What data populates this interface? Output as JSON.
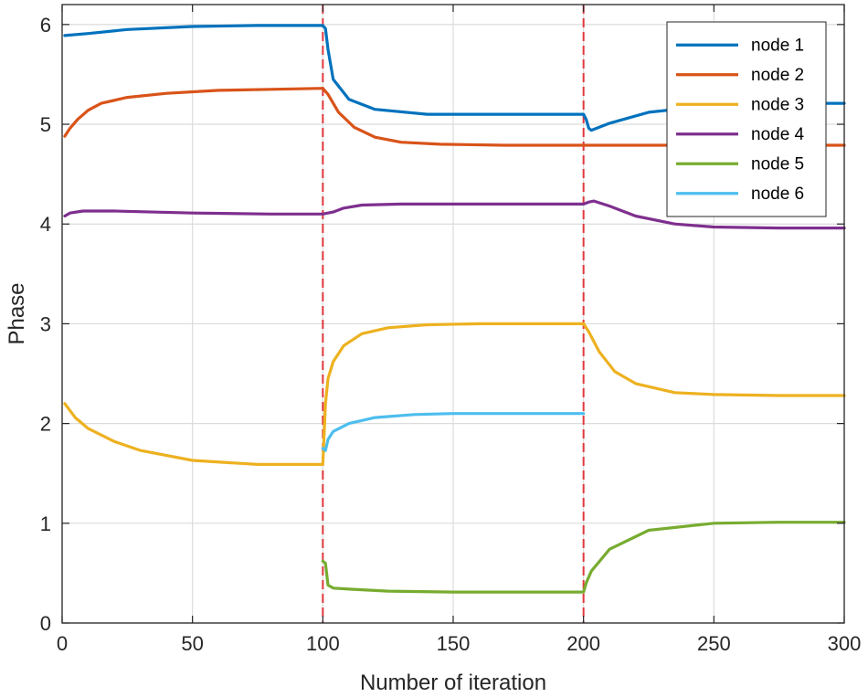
{
  "chart_data": {
    "type": "line",
    "title": "",
    "xlabel": "Number of iteration",
    "ylabel": "Phase",
    "xlim": [
      0,
      300
    ],
    "ylim": [
      0,
      6.2
    ],
    "xticks": [
      0,
      50,
      100,
      150,
      200,
      250,
      300
    ],
    "yticks": [
      0,
      1,
      2,
      3,
      4,
      5,
      6
    ],
    "grid": true,
    "legend_position": "top-right",
    "event_markers": [
      100,
      200
    ],
    "series": [
      {
        "name": "node 1",
        "color": "#0072bd",
        "x": [
          1,
          10,
          25,
          50,
          75,
          100,
          101,
          102,
          104,
          110,
          120,
          140,
          170,
          200,
          201,
          202,
          203,
          210,
          225,
          250,
          275,
          300
        ],
        "y": [
          5.89,
          5.91,
          5.95,
          5.98,
          5.99,
          5.99,
          5.96,
          5.75,
          5.45,
          5.25,
          5.15,
          5.1,
          5.1,
          5.1,
          5.05,
          4.96,
          4.94,
          5.01,
          5.12,
          5.19,
          5.21,
          5.21
        ]
      },
      {
        "name": "node 2",
        "color": "#d95319",
        "x": [
          1,
          3,
          6,
          10,
          15,
          25,
          40,
          60,
          80,
          100,
          102,
          106,
          112,
          120,
          130,
          145,
          170,
          200,
          225,
          250,
          300
        ],
        "y": [
          4.88,
          4.96,
          5.05,
          5.14,
          5.21,
          5.27,
          5.31,
          5.34,
          5.35,
          5.36,
          5.3,
          5.12,
          4.97,
          4.87,
          4.82,
          4.8,
          4.79,
          4.79,
          4.79,
          4.79,
          4.79
        ]
      },
      {
        "name": "node 3",
        "color": "#edb120",
        "x": [
          1,
          5,
          10,
          20,
          30,
          50,
          75,
          100,
          101,
          102,
          104,
          108,
          115,
          125,
          140,
          160,
          200,
          202,
          206,
          212,
          220,
          235,
          250,
          275,
          300
        ],
        "y": [
          2.2,
          2.06,
          1.95,
          1.82,
          1.73,
          1.63,
          1.59,
          1.59,
          2.2,
          2.45,
          2.62,
          2.78,
          2.9,
          2.96,
          2.99,
          3.0,
          3.0,
          2.92,
          2.72,
          2.52,
          2.4,
          2.31,
          2.29,
          2.28,
          2.28
        ]
      },
      {
        "name": "node 4",
        "color": "#7e2f8e",
        "x": [
          1,
          3,
          8,
          20,
          50,
          80,
          100,
          104,
          108,
          115,
          130,
          160,
          200,
          202,
          204,
          210,
          220,
          235,
          250,
          275,
          300
        ],
        "y": [
          4.08,
          4.11,
          4.13,
          4.13,
          4.11,
          4.1,
          4.1,
          4.12,
          4.16,
          4.19,
          4.2,
          4.2,
          4.2,
          4.22,
          4.23,
          4.18,
          4.08,
          4.0,
          3.97,
          3.96,
          3.96
        ]
      },
      {
        "name": "node 5",
        "color": "#77ac30",
        "x": [
          100,
          101,
          102,
          104,
          110,
          125,
          150,
          200,
          201,
          203,
          210,
          225,
          250,
          275,
          300
        ],
        "y": [
          0.62,
          0.6,
          0.38,
          0.35,
          0.34,
          0.32,
          0.31,
          0.31,
          0.4,
          0.52,
          0.74,
          0.93,
          1.0,
          1.01,
          1.01
        ]
      },
      {
        "name": "node 6",
        "color": "#4dbeee",
        "x": [
          100,
          101,
          102,
          104,
          110,
          120,
          135,
          150,
          175,
          200
        ],
        "y": [
          1.75,
          1.73,
          1.84,
          1.92,
          2.0,
          2.06,
          2.09,
          2.1,
          2.1,
          2.1
        ]
      }
    ]
  }
}
